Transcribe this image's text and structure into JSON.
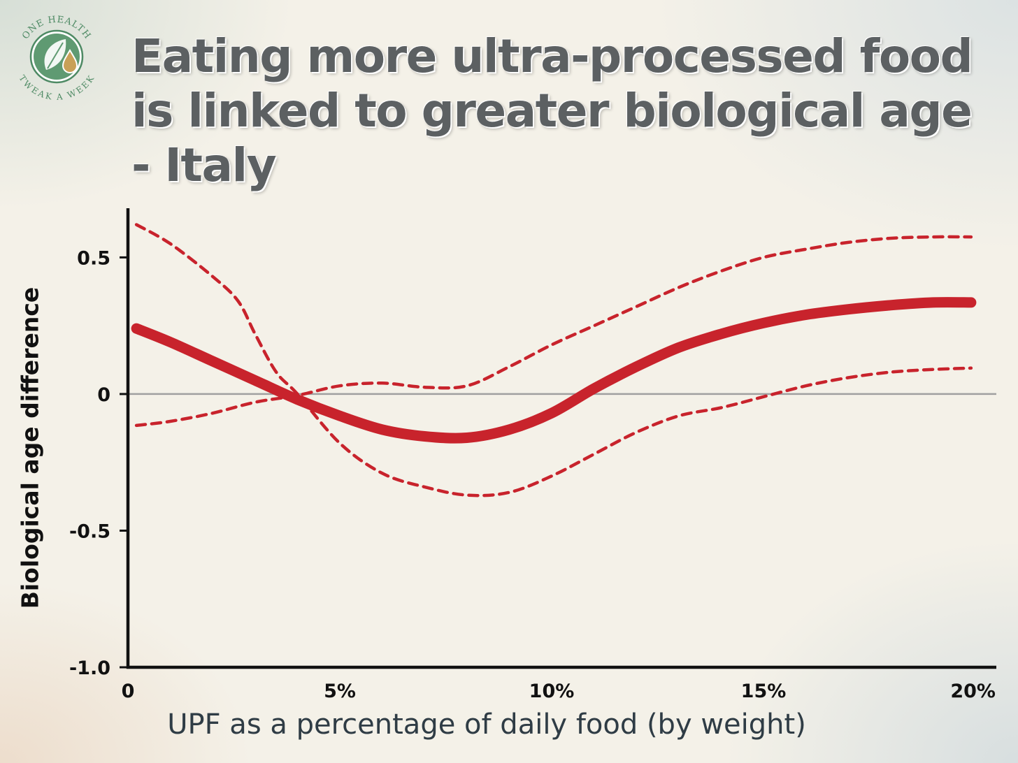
{
  "logo": {
    "top_text": "ONE HEALTH",
    "bottom_text": "TWEAK A WEEK"
  },
  "colors": {
    "curve": "#c8232c",
    "title": "#5c6062",
    "zero_line": "#a0a0a0",
    "logo_green": "#4e8a64",
    "logo_gold": "#b08a45"
  },
  "chart_data": {
    "type": "line",
    "title": "Eating more ultra-processed food is linked to greater biological age - Italy",
    "xlabel": "UPF as a percentage of daily food (by weight)",
    "ylabel": "Biological age difference",
    "xlim": [
      0,
      20
    ],
    "ylim": [
      -1.0,
      0.68
    ],
    "x_ticks": [
      {
        "value": 0,
        "label": "0"
      },
      {
        "value": 5,
        "label": "5%"
      },
      {
        "value": 10,
        "label": "10%"
      },
      {
        "value": 15,
        "label": "15%"
      },
      {
        "value": 20,
        "label": "20%"
      }
    ],
    "y_ticks": [
      {
        "value": 0.5,
        "label": "0.5"
      },
      {
        "value": 0,
        "label": "0"
      },
      {
        "value": -0.5,
        "label": "-0.5"
      },
      {
        "value": -1.0,
        "label": "-1.0"
      }
    ],
    "reference_line_y": 0,
    "series": [
      {
        "style": "solid",
        "points": [
          [
            0.2,
            0.24
          ],
          [
            1,
            0.19
          ],
          [
            2,
            0.12
          ],
          [
            3,
            0.05
          ],
          [
            4,
            -0.02
          ],
          [
            5,
            -0.08
          ],
          [
            6,
            -0.13
          ],
          [
            7,
            -0.155
          ],
          [
            8,
            -0.16
          ],
          [
            9,
            -0.13
          ],
          [
            10,
            -0.07
          ],
          [
            11,
            0.02
          ],
          [
            12,
            0.1
          ],
          [
            13,
            0.17
          ],
          [
            14,
            0.22
          ],
          [
            15,
            0.26
          ],
          [
            16,
            0.29
          ],
          [
            17,
            0.31
          ],
          [
            18,
            0.325
          ],
          [
            19,
            0.335
          ],
          [
            19.9,
            0.335
          ]
        ]
      },
      {
        "style": "dashed",
        "points": [
          [
            0.2,
            0.62
          ],
          [
            1,
            0.55
          ],
          [
            2,
            0.43
          ],
          [
            2.6,
            0.34
          ],
          [
            3,
            0.22
          ],
          [
            3.5,
            0.08
          ],
          [
            4,
            0.0
          ],
          [
            5,
            -0.18
          ],
          [
            6,
            -0.29
          ],
          [
            7,
            -0.34
          ],
          [
            8,
            -0.37
          ],
          [
            9,
            -0.36
          ],
          [
            10,
            -0.3
          ],
          [
            11,
            -0.22
          ],
          [
            12,
            -0.14
          ],
          [
            13,
            -0.08
          ],
          [
            14,
            -0.05
          ],
          [
            15,
            -0.01
          ],
          [
            16,
            0.03
          ],
          [
            17,
            0.06
          ],
          [
            18,
            0.08
          ],
          [
            19,
            0.09
          ],
          [
            19.9,
            0.095
          ]
        ]
      },
      {
        "style": "dashed",
        "points": [
          [
            0.2,
            -0.115
          ],
          [
            1,
            -0.1
          ],
          [
            2,
            -0.07
          ],
          [
            3,
            -0.03
          ],
          [
            4,
            -0.005
          ],
          [
            5,
            0.03
          ],
          [
            6,
            0.04
          ],
          [
            7,
            0.025
          ],
          [
            8,
            0.03
          ],
          [
            9,
            0.1
          ],
          [
            10,
            0.18
          ],
          [
            11,
            0.25
          ],
          [
            12,
            0.32
          ],
          [
            13,
            0.39
          ],
          [
            14,
            0.45
          ],
          [
            15,
            0.5
          ],
          [
            16,
            0.53
          ],
          [
            17,
            0.555
          ],
          [
            18,
            0.57
          ],
          [
            19,
            0.575
          ],
          [
            19.9,
            0.575
          ]
        ]
      }
    ]
  }
}
